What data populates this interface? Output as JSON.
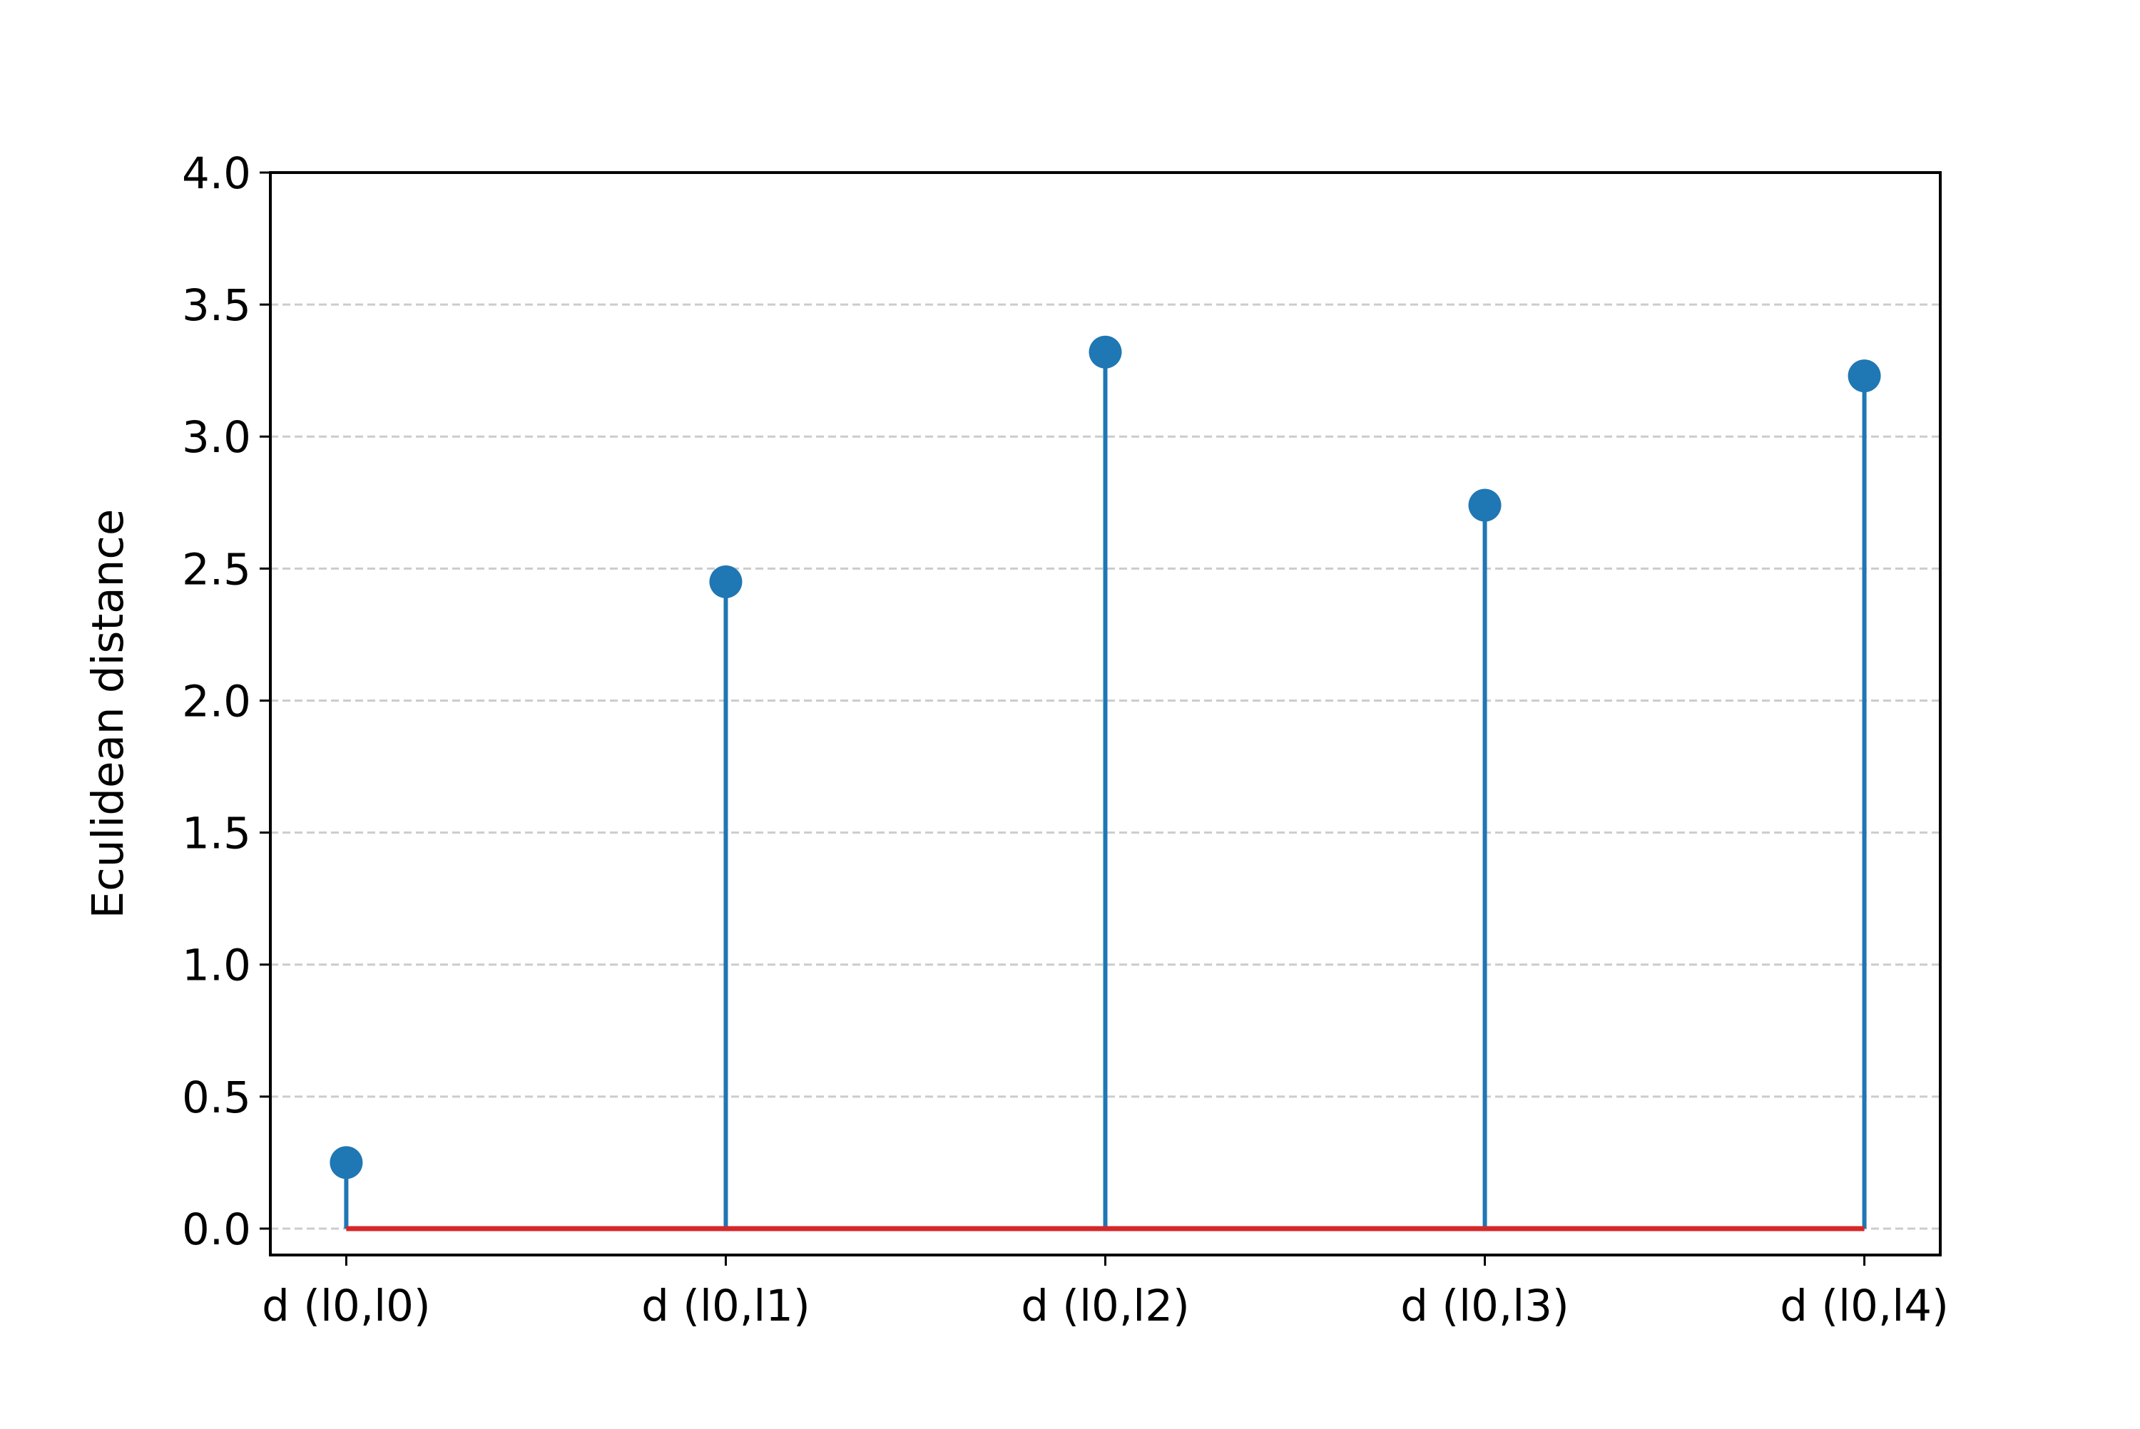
{
  "chart_data": {
    "type": "stem",
    "title": "",
    "xlabel": "",
    "ylabel": "Eculidean distance",
    "categories": [
      "d (l0,l0)",
      "d (l0,l1)",
      "d (l0,l2)",
      "d (l0,l3)",
      "d (l0,l4)"
    ],
    "values": [
      0.25,
      2.45,
      3.32,
      2.74,
      3.23
    ],
    "ylim": [
      -0.1,
      4.0
    ],
    "yticks": [
      0.0,
      0.5,
      1.0,
      1.5,
      2.0,
      2.5,
      3.0,
      3.5,
      4.0
    ],
    "ytick_labels": [
      "0.0",
      "0.5",
      "1.0",
      "1.5",
      "2.0",
      "2.5",
      "3.0",
      "3.5",
      "4.0"
    ],
    "baseline": 0.0,
    "grid": {
      "axis": "y",
      "style": "dashed",
      "color": "#cccccc"
    },
    "colors": {
      "stem": "#1f77b4",
      "marker": "#1f77b4",
      "baseline": "#d62728",
      "grid": "#cccccc",
      "axes": "#000000"
    }
  }
}
